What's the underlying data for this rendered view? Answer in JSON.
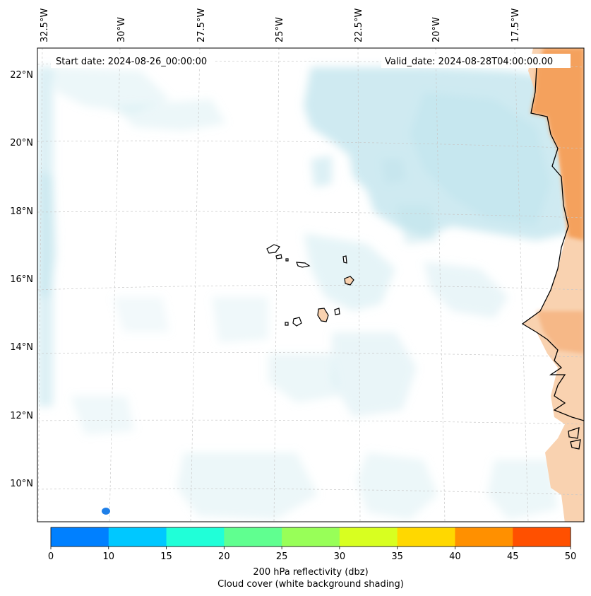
{
  "map": {
    "start_date": "Start date: 2024-08-26_00:00:00",
    "valid_date": "Valid_date: 2024-08-28T04:00:00.00",
    "lon_labels": [
      "32.5°W",
      "30°W",
      "27.5°W",
      "25°W",
      "22.5°W",
      "20°W",
      "17.5°W"
    ],
    "lat_labels": [
      "22°N",
      "20°N",
      "18°N",
      "16°N",
      "14°N",
      "12°N",
      "10°N"
    ],
    "regions": [
      "Cape Verde islands",
      "West African coast"
    ]
  },
  "colorbar": {
    "ticks": [
      "0",
      "10",
      "15",
      "20",
      "25",
      "30",
      "35",
      "40",
      "45",
      "50"
    ],
    "colors": [
      "#0080ff",
      "#00c8ff",
      "#20ffd8",
      "#60ff90",
      "#98ff58",
      "#d8ff20",
      "#ffd800",
      "#ff9000",
      "#ff5000"
    ],
    "label_line1": "200 hPa reflectivity (dbz)",
    "label_line2": "Cloud cover (white background shading)"
  },
  "colors": {
    "cloud": "#bfe3ec",
    "land_warm": "#f4a15d",
    "land_light": "#f9d2b0",
    "coastline": "#000000",
    "gridline": "#c8c8c8",
    "reflectivity_cell": "#1e7fe8"
  }
}
